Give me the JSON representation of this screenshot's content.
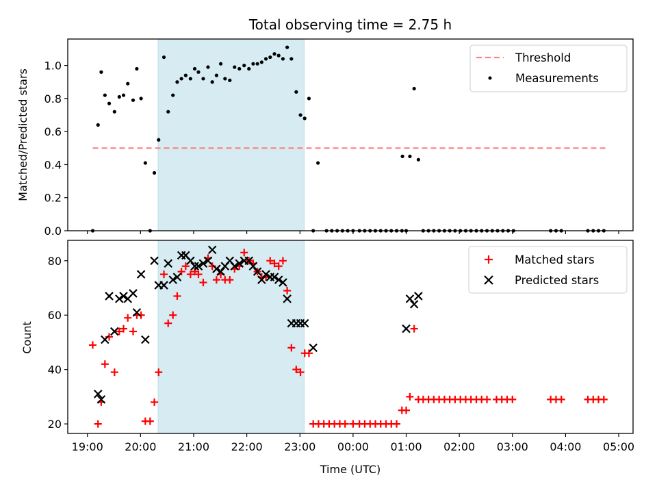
{
  "title": "Total observing time = 2.75 h",
  "xlabel": "Time (UTC)",
  "x_ticks": [
    "19:00",
    "20:00",
    "21:00",
    "22:00",
    "23:00",
    "00:00",
    "01:00",
    "02:00",
    "03:00",
    "04:00",
    "05:00"
  ],
  "colors": {
    "threshold": "#ff7f7f",
    "highlight": "#add8e6",
    "matched": "#ff0000",
    "predicted": "#000000",
    "measurements": "#000000"
  },
  "chart_data": [
    {
      "type": "scatter",
      "ylabel": "Matched/Predicted stars",
      "ylim": [
        0,
        1.16
      ],
      "y_ticks": [
        "0.0",
        "0.2",
        "0.4",
        "0.6",
        "0.8",
        "1.0"
      ],
      "xlim": [
        18.63,
        29.27
      ],
      "highlight_span": [
        20.33,
        23.08
      ],
      "legend": {
        "placement": "top-right",
        "entries": [
          "Threshold",
          "Measurements"
        ]
      },
      "threshold": {
        "name": "Threshold",
        "value": 0.5,
        "x": [
          19.1,
          28.8
        ]
      },
      "series": [
        {
          "name": "Measurements",
          "points": [
            [
              19.1,
              0.0
            ],
            [
              19.2,
              0.64
            ],
            [
              19.26,
              0.96
            ],
            [
              19.33,
              0.82
            ],
            [
              19.41,
              0.77
            ],
            [
              19.51,
              0.72
            ],
            [
              19.6,
              0.81
            ],
            [
              19.68,
              0.82
            ],
            [
              19.76,
              0.89
            ],
            [
              19.86,
              0.79
            ],
            [
              19.93,
              0.98
            ],
            [
              20.01,
              0.8
            ],
            [
              20.09,
              0.41
            ],
            [
              20.18,
              0.0
            ],
            [
              20.26,
              0.35
            ],
            [
              20.34,
              0.55
            ],
            [
              20.44,
              1.05
            ],
            [
              20.52,
              0.72
            ],
            [
              20.61,
              0.82
            ],
            [
              20.69,
              0.9
            ],
            [
              20.77,
              0.92
            ],
            [
              20.85,
              0.94
            ],
            [
              20.94,
              0.92
            ],
            [
              21.02,
              0.98
            ],
            [
              21.09,
              0.96
            ],
            [
              21.18,
              0.92
            ],
            [
              21.27,
              0.99
            ],
            [
              21.35,
              0.9
            ],
            [
              21.43,
              0.94
            ],
            [
              21.51,
              1.01
            ],
            [
              21.59,
              0.92
            ],
            [
              21.68,
              0.91
            ],
            [
              21.77,
              0.99
            ],
            [
              21.86,
              0.98
            ],
            [
              21.95,
              1.0
            ],
            [
              22.04,
              0.98
            ],
            [
              22.12,
              1.01
            ],
            [
              22.2,
              1.01
            ],
            [
              22.28,
              1.02
            ],
            [
              22.36,
              1.04
            ],
            [
              22.44,
              1.05
            ],
            [
              22.52,
              1.07
            ],
            [
              22.6,
              1.06
            ],
            [
              22.68,
              1.04
            ],
            [
              22.76,
              1.11
            ],
            [
              22.84,
              1.04
            ],
            [
              22.93,
              0.84
            ],
            [
              23.01,
              0.7
            ],
            [
              23.09,
              0.68
            ],
            [
              23.17,
              0.8
            ],
            [
              23.25,
              0.0
            ],
            [
              23.34,
              0.41
            ],
            [
              23.5,
              0.0
            ],
            [
              23.6,
              0.0
            ],
            [
              23.7,
              0.0
            ],
            [
              23.8,
              0.0
            ],
            [
              23.9,
              0.0
            ],
            [
              24.0,
              0.0
            ],
            [
              24.12,
              0.0
            ],
            [
              24.22,
              0.0
            ],
            [
              24.32,
              0.0
            ],
            [
              24.42,
              0.0
            ],
            [
              24.52,
              0.0
            ],
            [
              24.62,
              0.0
            ],
            [
              24.72,
              0.0
            ],
            [
              24.82,
              0.0
            ],
            [
              24.92,
              0.0
            ],
            [
              25.0,
              0.0
            ],
            [
              24.93,
              0.45
            ],
            [
              25.07,
              0.45
            ],
            [
              25.15,
              0.86
            ],
            [
              25.23,
              0.43
            ],
            [
              25.32,
              0.0
            ],
            [
              25.42,
              0.0
            ],
            [
              25.52,
              0.0
            ],
            [
              25.62,
              0.0
            ],
            [
              25.72,
              0.0
            ],
            [
              25.82,
              0.0
            ],
            [
              25.92,
              0.0
            ],
            [
              26.02,
              0.0
            ],
            [
              26.12,
              0.0
            ],
            [
              26.22,
              0.0
            ],
            [
              26.32,
              0.0
            ],
            [
              26.42,
              0.0
            ],
            [
              26.52,
              0.0
            ],
            [
              26.62,
              0.0
            ],
            [
              26.72,
              0.0
            ],
            [
              26.82,
              0.0
            ],
            [
              26.92,
              0.0
            ],
            [
              27.02,
              0.0
            ],
            [
              27.72,
              0.0
            ],
            [
              27.82,
              0.0
            ],
            [
              27.92,
              0.0
            ],
            [
              28.42,
              0.0
            ],
            [
              28.52,
              0.0
            ],
            [
              28.62,
              0.0
            ],
            [
              28.72,
              0.0
            ]
          ]
        }
      ]
    },
    {
      "type": "scatter",
      "ylabel": "Count",
      "ylim": [
        16.5,
        87.5
      ],
      "y_ticks": [
        "20",
        "40",
        "60",
        "80"
      ],
      "xlim": [
        18.63,
        29.27
      ],
      "highlight_span": [
        20.33,
        23.08
      ],
      "legend": {
        "placement": "top-right",
        "entries": [
          "Matched stars",
          "Predicted stars"
        ]
      },
      "series": [
        {
          "name": "Matched stars",
          "marker": "+",
          "points": [
            [
              19.1,
              49
            ],
            [
              19.2,
              20
            ],
            [
              19.26,
              28
            ],
            [
              19.33,
              42
            ],
            [
              19.41,
              52
            ],
            [
              19.51,
              39
            ],
            [
              19.6,
              54
            ],
            [
              19.68,
              55
            ],
            [
              19.76,
              59
            ],
            [
              19.86,
              54
            ],
            [
              19.93,
              60
            ],
            [
              20.01,
              60
            ],
            [
              20.09,
              21
            ],
            [
              20.18,
              21
            ],
            [
              20.26,
              28
            ],
            [
              20.34,
              39
            ],
            [
              20.44,
              75
            ],
            [
              20.52,
              57
            ],
            [
              20.61,
              60
            ],
            [
              20.69,
              67
            ],
            [
              20.77,
              76
            ],
            [
              20.85,
              78
            ],
            [
              20.94,
              75
            ],
            [
              21.02,
              76
            ],
            [
              21.09,
              75
            ],
            [
              21.18,
              72
            ],
            [
              21.27,
              81
            ],
            [
              21.35,
              78
            ],
            [
              21.43,
              73
            ],
            [
              21.51,
              75
            ],
            [
              21.59,
              73
            ],
            [
              21.68,
              73
            ],
            [
              21.77,
              77
            ],
            [
              21.86,
              78
            ],
            [
              21.95,
              83
            ],
            [
              22.04,
              80
            ],
            [
              22.12,
              79
            ],
            [
              22.2,
              76
            ],
            [
              22.28,
              74
            ],
            [
              22.36,
              74
            ],
            [
              22.44,
              80
            ],
            [
              22.52,
              79
            ],
            [
              22.6,
              78
            ],
            [
              22.68,
              80
            ],
            [
              22.76,
              69
            ],
            [
              22.84,
              48
            ],
            [
              22.93,
              40
            ],
            [
              23.01,
              39
            ],
            [
              23.09,
              46
            ],
            [
              23.17,
              46
            ],
            [
              23.25,
              20
            ],
            [
              23.35,
              20
            ],
            [
              23.45,
              20
            ],
            [
              23.55,
              20
            ],
            [
              23.65,
              20
            ],
            [
              23.75,
              20
            ],
            [
              23.85,
              20
            ],
            [
              24.0,
              20
            ],
            [
              24.12,
              20
            ],
            [
              24.22,
              20
            ],
            [
              24.32,
              20
            ],
            [
              24.42,
              20
            ],
            [
              24.52,
              20
            ],
            [
              24.62,
              20
            ],
            [
              24.72,
              20
            ],
            [
              24.82,
              20
            ],
            [
              24.92,
              25
            ],
            [
              25.0,
              25
            ],
            [
              25.07,
              30
            ],
            [
              25.15,
              55
            ],
            [
              25.23,
              29
            ],
            [
              25.32,
              29
            ],
            [
              25.42,
              29
            ],
            [
              25.52,
              29
            ],
            [
              25.62,
              29
            ],
            [
              25.72,
              29
            ],
            [
              25.82,
              29
            ],
            [
              25.92,
              29
            ],
            [
              26.02,
              29
            ],
            [
              26.12,
              29
            ],
            [
              26.22,
              29
            ],
            [
              26.32,
              29
            ],
            [
              26.42,
              29
            ],
            [
              26.52,
              29
            ],
            [
              26.7,
              29
            ],
            [
              26.8,
              29
            ],
            [
              26.9,
              29
            ],
            [
              27.0,
              29
            ],
            [
              27.72,
              29
            ],
            [
              27.82,
              29
            ],
            [
              27.92,
              29
            ],
            [
              28.42,
              29
            ],
            [
              28.52,
              29
            ],
            [
              28.62,
              29
            ],
            [
              28.72,
              29
            ]
          ]
        },
        {
          "name": "Predicted stars",
          "marker": "x",
          "points": [
            [
              19.2,
              31
            ],
            [
              19.26,
              29
            ],
            [
              19.33,
              51
            ],
            [
              19.41,
              67
            ],
            [
              19.51,
              54
            ],
            [
              19.6,
              66
            ],
            [
              19.68,
              67
            ],
            [
              19.76,
              66
            ],
            [
              19.86,
              68
            ],
            [
              19.93,
              61
            ],
            [
              20.01,
              75
            ],
            [
              20.09,
              51
            ],
            [
              20.26,
              80
            ],
            [
              20.34,
              71
            ],
            [
              20.44,
              71
            ],
            [
              20.52,
              79
            ],
            [
              20.61,
              73
            ],
            [
              20.69,
              74
            ],
            [
              20.77,
              82
            ],
            [
              20.85,
              82
            ],
            [
              20.94,
              80
            ],
            [
              21.02,
              78
            ],
            [
              21.09,
              78
            ],
            [
              21.18,
              79
            ],
            [
              21.27,
              80
            ],
            [
              21.35,
              84
            ],
            [
              21.43,
              77
            ],
            [
              21.51,
              76
            ],
            [
              21.59,
              78
            ],
            [
              21.68,
              80
            ],
            [
              21.77,
              78
            ],
            [
              21.86,
              79
            ],
            [
              21.95,
              80
            ],
            [
              22.04,
              80
            ],
            [
              22.12,
              78
            ],
            [
              22.2,
              76
            ],
            [
              22.28,
              73
            ],
            [
              22.36,
              75
            ],
            [
              22.44,
              74
            ],
            [
              22.52,
              74
            ],
            [
              22.6,
              73
            ],
            [
              22.68,
              72
            ],
            [
              22.76,
              66
            ],
            [
              22.84,
              57
            ],
            [
              22.93,
              57
            ],
            [
              23.01,
              57
            ],
            [
              23.09,
              57
            ],
            [
              23.25,
              48
            ],
            [
              25.0,
              55
            ],
            [
              25.07,
              66
            ],
            [
              25.15,
              64
            ],
            [
              25.23,
              67
            ]
          ]
        }
      ]
    }
  ]
}
